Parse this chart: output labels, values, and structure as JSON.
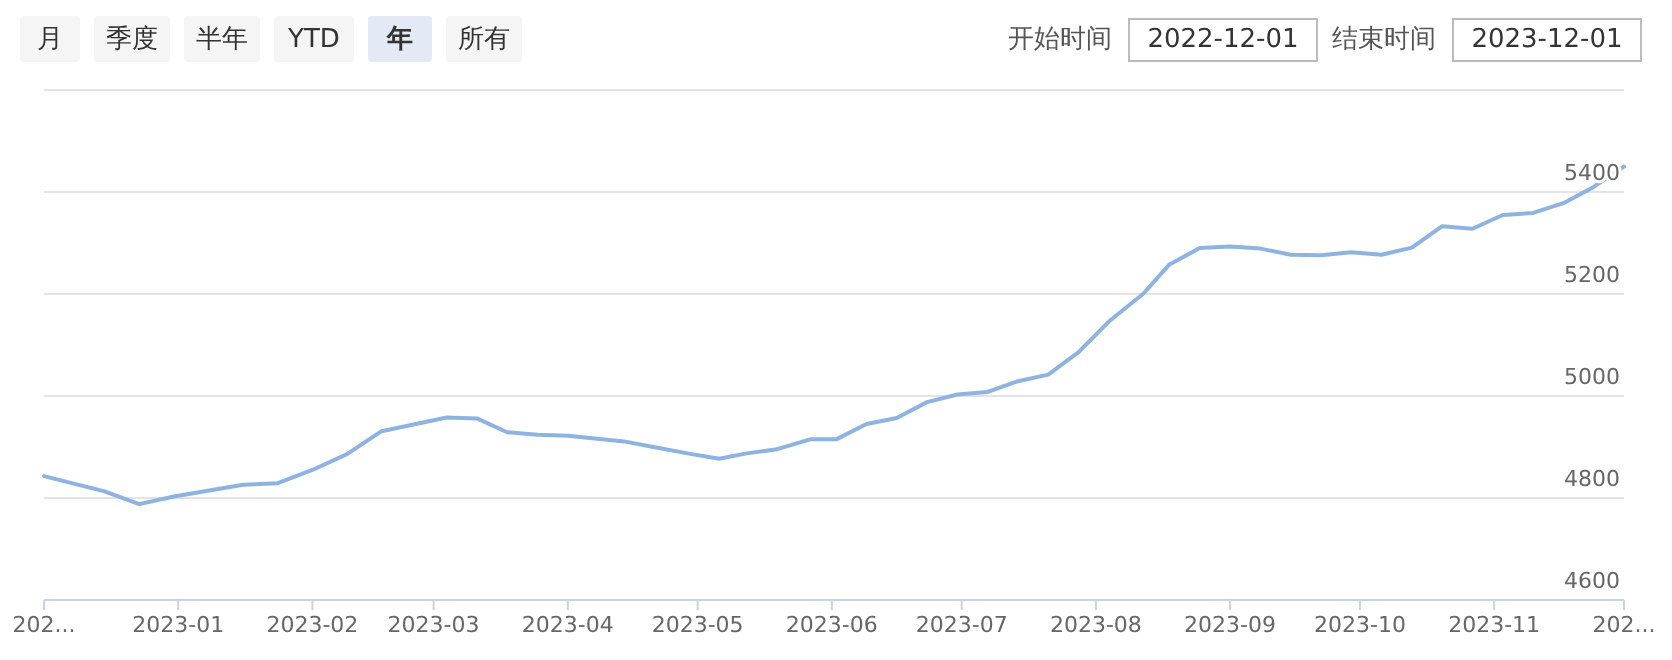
{
  "chart_data": {
    "type": "line",
    "annotations": [
      "月",
      "季度",
      "半年",
      "YTD",
      "年",
      "所有",
      "开始时间",
      "2022-12-01",
      "结束时间",
      "2023-12-01"
    ],
    "x": [
      "2022-12-01",
      "2022-12-15",
      "2022-12-23",
      "2022-12-31",
      "2023-01-16",
      "2023-01-24",
      "2023-02-01",
      "2023-02-09",
      "2023-02-17",
      "2023-03-04",
      "2023-03-11",
      "2023-03-18",
      "2023-03-25",
      "2023-04-01",
      "2023-04-14",
      "2023-04-22",
      "2023-04-29",
      "2023-05-06",
      "2023-05-12",
      "2023-05-19",
      "2023-05-27",
      "2023-06-02",
      "2023-06-09",
      "2023-06-16",
      "2023-06-23",
      "2023-06-30",
      "2023-07-07",
      "2023-07-14",
      "2023-07-21",
      "2023-07-28",
      "2023-08-04",
      "2023-08-12",
      "2023-08-18",
      "2023-08-25",
      "2023-09-01",
      "2023-09-08",
      "2023-09-15",
      "2023-09-22",
      "2023-09-29",
      "2023-10-06",
      "2023-10-13",
      "2023-10-20",
      "2023-10-27",
      "2023-11-03",
      "2023-11-10",
      "2023-11-17",
      "2023-11-24",
      "2023-12-01"
    ],
    "series": [
      {
        "color": "#8fb3e0",
        "values": [
          4843,
          4813,
          4788,
          4803,
          4826,
          4829,
          4855,
          4886,
          4931,
          4958,
          4956,
          4929,
          4924,
          4922,
          4911,
          4898,
          4887,
          4877,
          4887,
          4895,
          4915,
          4915,
          4945,
          4957,
          4988,
          5003,
          5008,
          5029,
          5042,
          5086,
          5146,
          5201,
          5258,
          5290,
          5293,
          5289,
          5277,
          5276,
          5282,
          5277,
          5291,
          5333,
          5328,
          5355,
          5359,
          5378,
          5410,
          5450
        ]
      }
    ],
    "xlim": [
      "2022-12-01",
      "2023-12-01"
    ],
    "xticks": [
      {
        "value": "2022-12-01",
        "label": "202..."
      },
      {
        "value": "2023-01-01",
        "label": "2023-01"
      },
      {
        "value": "2023-02-01",
        "label": "2023-02"
      },
      {
        "value": "2023-03-01",
        "label": "2023-03"
      },
      {
        "value": "2023-04-01",
        "label": "2023-04"
      },
      {
        "value": "2023-05-01",
        "label": "2023-05"
      },
      {
        "value": "2023-06-01",
        "label": "2023-06"
      },
      {
        "value": "2023-07-01",
        "label": "2023-07"
      },
      {
        "value": "2023-08-01",
        "label": "2023-08"
      },
      {
        "value": "2023-09-01",
        "label": "2023-09"
      },
      {
        "value": "2023-10-01",
        "label": "2023-10"
      },
      {
        "value": "2023-11-01",
        "label": "2023-11"
      },
      {
        "value": "2023-12-01",
        "label": "202..."
      }
    ],
    "ylim": [
      4600,
      5600
    ],
    "yticks": [
      4600,
      4800,
      5000,
      5200,
      5400,
      {
        "value": 5600,
        "label": null
      }
    ],
    "grid": "y",
    "marker": "none",
    "line_style": "solid"
  }
}
